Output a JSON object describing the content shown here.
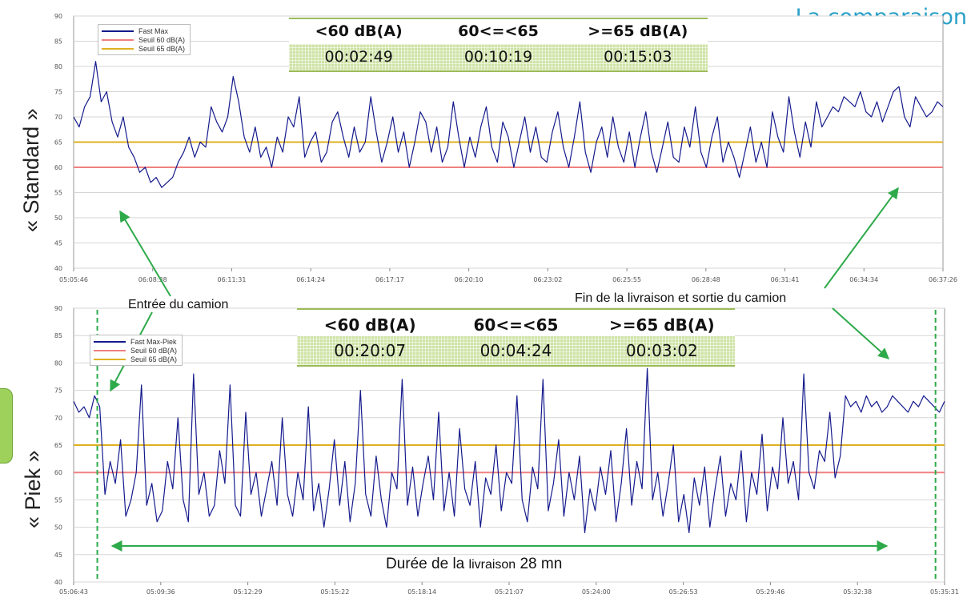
{
  "page_title": "La comparaison",
  "side_labels": {
    "standard": "« Standard »",
    "piek": "« Piek »"
  },
  "colors": {
    "series": "#141a8c",
    "seuil60": "#f08080",
    "seuil65": "#e0b020",
    "marker": "#2eaa4a",
    "title": "#2aa0c8"
  },
  "annotations": {
    "entree": "Entrée du camion",
    "fin": "Fin de la livraison et sortie du camion",
    "duree_prefix": "Durée de la ",
    "duree_small": "livraison",
    "duree_suffix": " 28 mn"
  },
  "stats_top": {
    "headers": [
      "<60 dB(A)",
      "60<=<65",
      ">=65 dB(A)"
    ],
    "values": [
      "00:02:49",
      "00:10:19",
      "00:15:03"
    ]
  },
  "stats_bottom": {
    "headers": [
      "<60 dB(A)",
      "60<=<65",
      ">=65 dB(A)"
    ],
    "values": [
      "00:20:07",
      "00:04:24",
      "00:03:02"
    ]
  },
  "legend_top": [
    "Fast Max",
    "Seuil 60 dB(A)",
    "Seuil 65 dB(A)"
  ],
  "legend_bottom": [
    "Fast Max-Piek",
    "Seuil 60 dB(A)",
    "Seuil 65 dB(A)"
  ],
  "chart_data": [
    {
      "type": "line",
      "name": "standard",
      "xlabel": "",
      "ylabel": "",
      "ylim": [
        40,
        90
      ],
      "yticks": [
        "40",
        "45",
        "50",
        "55",
        "60",
        "65",
        "70",
        "75",
        "80",
        "85",
        "90"
      ],
      "xticks": [
        "05:05:46",
        "06:08:38",
        "06:11:31",
        "06:14:24",
        "06:17:17",
        "06:20:10",
        "06:23:02",
        "06:25:55",
        "06:28:48",
        "06:31:41",
        "06:34:34",
        "06:37:26"
      ],
      "thresholds": [
        {
          "name": "Seuil 60 dB(A)",
          "value": 60
        },
        {
          "name": "Seuil 65 dB(A)",
          "value": 65
        }
      ],
      "markers_at_time": [
        "06:07:35",
        "06:35:35"
      ],
      "series": [
        {
          "name": "Fast Max",
          "x_points": [
            0,
            12,
            24,
            36,
            48,
            60,
            72,
            84,
            96,
            108,
            120,
            132,
            144,
            156,
            168,
            180,
            192,
            204,
            216,
            228,
            240,
            252,
            264,
            276,
            288,
            300,
            312,
            324,
            336,
            348,
            360,
            372,
            384,
            396,
            408,
            420,
            432,
            444,
            456,
            468,
            480,
            492,
            504,
            516,
            528,
            540,
            552,
            564,
            576,
            588,
            600,
            612,
            624,
            636,
            648,
            660,
            672,
            684,
            696,
            708,
            720,
            732,
            744,
            756,
            768,
            780,
            792,
            804,
            816,
            828,
            840,
            852,
            864,
            876,
            888,
            900,
            912,
            924,
            936,
            948,
            960,
            972,
            984,
            996,
            1008,
            1020,
            1032,
            1044,
            1056,
            1068,
            1080,
            1092,
            1104,
            1116,
            1128,
            1140,
            1152,
            1164,
            1176,
            1188,
            1200,
            1212,
            1224,
            1236,
            1248,
            1260,
            1272,
            1284,
            1296,
            1308,
            1320,
            1332,
            1344,
            1356,
            1368,
            1380,
            1392,
            1404,
            1416,
            1428,
            1440,
            1452,
            1464,
            1476,
            1488,
            1500,
            1512,
            1524,
            1536,
            1548,
            1560,
            1572,
            1584,
            1596,
            1608,
            1620,
            1632,
            1644,
            1656,
            1668,
            1680,
            1692,
            1704,
            1716,
            1728,
            1740,
            1752,
            1764,
            1776,
            1788,
            1800,
            1812,
            1824,
            1836,
            1848,
            1860,
            1872,
            1884,
            1896
          ],
          "values": [
            70,
            68,
            72,
            74,
            81,
            73,
            75,
            69,
            66,
            70,
            64,
            62,
            59,
            60,
            57,
            58,
            56,
            57,
            58,
            61,
            63,
            66,
            62,
            65,
            64,
            72,
            69,
            67,
            70,
            78,
            73,
            66,
            63,
            68,
            62,
            64,
            60,
            66,
            63,
            70,
            68,
            74,
            62,
            65,
            67,
            61,
            63,
            69,
            71,
            66,
            62,
            68,
            63,
            65,
            74,
            67,
            61,
            65,
            70,
            63,
            67,
            60,
            65,
            71,
            69,
            63,
            68,
            61,
            64,
            73,
            66,
            60,
            66,
            62,
            68,
            72,
            64,
            61,
            69,
            66,
            60,
            65,
            70,
            63,
            68,
            62,
            61,
            67,
            71,
            64,
            60,
            66,
            73,
            63,
            59,
            65,
            68,
            62,
            70,
            64,
            61,
            67,
            60,
            66,
            71,
            63,
            59,
            64,
            69,
            62,
            61,
            68,
            64,
            72,
            63,
            60,
            66,
            70,
            61,
            65,
            62,
            58,
            63,
            68,
            61,
            65,
            60,
            71,
            66,
            63,
            74,
            67,
            62,
            69,
            64,
            73,
            68,
            70,
            72,
            71,
            74,
            73,
            72,
            75,
            71,
            70,
            73,
            69,
            72,
            75,
            76,
            70,
            68,
            74,
            72,
            70,
            71,
            73,
            72
          ]
        }
      ]
    },
    {
      "type": "line",
      "name": "piek",
      "xlabel": "",
      "ylabel": "",
      "ylim": [
        40,
        90
      ],
      "yticks": [
        "40",
        "45",
        "50",
        "55",
        "60",
        "65",
        "70",
        "75",
        "80",
        "85",
        "90"
      ],
      "xticks": [
        "05:06:43",
        "05:09:36",
        "05:12:29",
        "05:15:22",
        "05:18:14",
        "05:21:07",
        "05:24:00",
        "05:26:53",
        "05:29:46",
        "05:32:38",
        "05:35:31"
      ],
      "thresholds": [
        {
          "name": "Seuil 60 dB(A)",
          "value": 60
        },
        {
          "name": "Seuil 65 dB(A)",
          "value": 65
        }
      ],
      "markers_at_time": [
        "05:07:30",
        "05:35:15"
      ],
      "duration_arrow": {
        "from": "05:07:30",
        "to": "05:35:15"
      },
      "series": [
        {
          "name": "Fast Max-Piek",
          "x_points": [
            0,
            12,
            24,
            36,
            48,
            60,
            72,
            84,
            96,
            108,
            120,
            132,
            144,
            156,
            168,
            180,
            192,
            204,
            216,
            228,
            240,
            252,
            264,
            276,
            288,
            300,
            312,
            324,
            336,
            348,
            360,
            372,
            384,
            396,
            408,
            420,
            432,
            444,
            456,
            468,
            480,
            492,
            504,
            516,
            528,
            540,
            552,
            564,
            576,
            588,
            600,
            612,
            624,
            636,
            648,
            660,
            672,
            684,
            696,
            708,
            720,
            732,
            744,
            756,
            768,
            780,
            792,
            804,
            816,
            828,
            840,
            852,
            864,
            876,
            888,
            900,
            912,
            924,
            936,
            948,
            960,
            972,
            984,
            996,
            1008,
            1020,
            1032,
            1044,
            1056,
            1068,
            1080,
            1092,
            1104,
            1116,
            1128,
            1140,
            1152,
            1164,
            1176,
            1188,
            1200,
            1212,
            1224,
            1236,
            1248,
            1260,
            1272,
            1284,
            1296,
            1308,
            1320,
            1332,
            1344,
            1356,
            1368,
            1380,
            1392,
            1404,
            1416,
            1428,
            1440,
            1452,
            1464,
            1476,
            1488,
            1500,
            1512,
            1524,
            1536,
            1548,
            1560,
            1572,
            1584,
            1596,
            1608,
            1620,
            1632,
            1644,
            1656,
            1668,
            1680,
            1692,
            1704,
            1716,
            1728,
            1740,
            1752,
            1764,
            1776,
            1788,
            1800,
            1812,
            1824,
            1836,
            1848,
            1860,
            1872,
            1884,
            1896,
            1908,
            1920,
            1932,
            1944,
            1956,
            1968,
            1980,
            1992,
            2004
          ],
          "values": [
            73,
            71,
            72,
            70,
            74,
            72,
            56,
            62,
            58,
            66,
            52,
            55,
            60,
            76,
            54,
            58,
            51,
            53,
            62,
            57,
            70,
            55,
            51,
            78,
            56,
            60,
            52,
            54,
            64,
            58,
            76,
            54,
            52,
            71,
            56,
            60,
            52,
            57,
            62,
            54,
            70,
            56,
            52,
            60,
            55,
            72,
            53,
            58,
            50,
            57,
            66,
            54,
            62,
            51,
            58,
            75,
            56,
            52,
            63,
            55,
            50,
            60,
            57,
            77,
            54,
            61,
            52,
            58,
            63,
            55,
            71,
            53,
            60,
            52,
            68,
            57,
            54,
            62,
            50,
            59,
            56,
            65,
            53,
            60,
            58,
            74,
            55,
            51,
            61,
            57,
            77,
            53,
            58,
            66,
            52,
            60,
            55,
            63,
            49,
            57,
            53,
            61,
            56,
            64,
            51,
            58,
            68,
            54,
            62,
            57,
            79,
            55,
            60,
            52,
            58,
            65,
            51,
            56,
            49,
            59,
            54,
            61,
            50,
            57,
            63,
            52,
            58,
            55,
            64,
            51,
            60,
            56,
            67,
            53,
            61,
            57,
            70,
            58,
            62,
            55,
            78,
            60,
            57,
            64,
            62,
            71,
            59,
            63,
            74,
            72,
            73,
            71,
            74,
            72,
            73,
            71,
            72,
            74,
            73,
            72,
            71,
            73,
            72,
            74,
            73,
            72,
            71,
            73
          ]
        }
      ]
    }
  ]
}
